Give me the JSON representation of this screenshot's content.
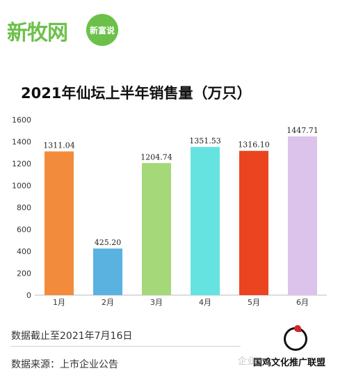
{
  "brand": {
    "logo_text": "新牧网",
    "badge_text": "新富说"
  },
  "footer": {
    "cutoff": "数据截止至2021年7月16日",
    "source": "数据来源：上市企业公告",
    "watermark": "企业",
    "seal": "国鸡文化推广联盟"
  },
  "colors": {
    "brand_green": "#6cc04a"
  },
  "chart_data": {
    "type": "bar",
    "title": "2021年仙坛上半年销售量（万只）",
    "categories": [
      "1月",
      "2月",
      "3月",
      "4月",
      "5月",
      "6月"
    ],
    "values": [
      1311.04,
      425.2,
      1204.74,
      1351.53,
      1316.1,
      1447.71
    ],
    "value_labels": [
      "1311.04",
      "425.20",
      "1204.74",
      "1351.53",
      "1316.10",
      "1447.71"
    ],
    "colors": [
      "#f28c3c",
      "#5ab2e0",
      "#a5d879",
      "#64e3e1",
      "#ea4520",
      "#dcc3ec"
    ],
    "yticks": [
      "0",
      "200",
      "400",
      "600",
      "800",
      "1000",
      "1200",
      "1400",
      "1600"
    ],
    "ylim": [
      0,
      1600
    ],
    "grid": false,
    "legend": false
  }
}
